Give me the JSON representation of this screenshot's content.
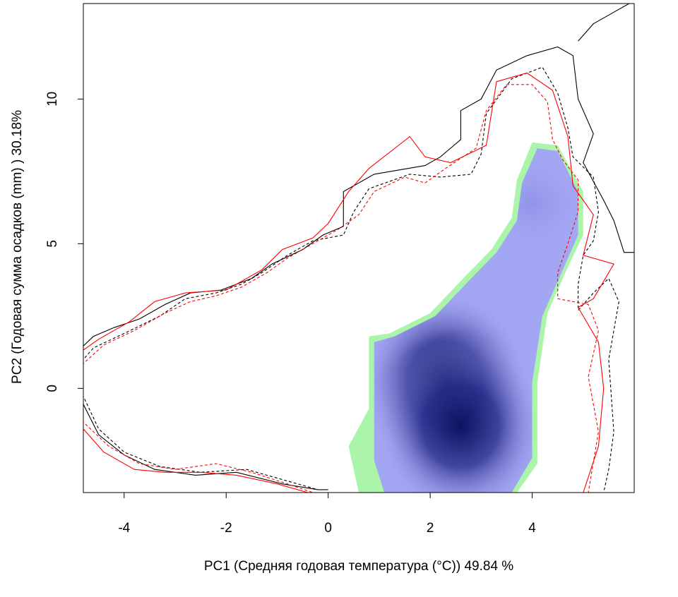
{
  "chart_data": {
    "type": "heatmap",
    "title": "",
    "xlabel": "PC1 (Средняя годовая температура (°C)) 49.84 %",
    "ylabel": "PC2 (Годовая сумма осадков  (mm) ) 30.18%",
    "xlim": [
      -4.8,
      6.0
    ],
    "ylim": [
      -3.6,
      13.3
    ],
    "x_ticks": [
      -4,
      -2,
      0,
      2,
      4
    ],
    "y_ticks": [
      0,
      5,
      10
    ],
    "x_tick_labels": [
      "-4",
      "-2",
      "0",
      "2",
      "4"
    ],
    "y_tick_labels": [
      "0",
      "5",
      "10"
    ],
    "grid": false,
    "legend": "none",
    "density_peaks": [
      {
        "x": 2.3,
        "y": 0.2,
        "level": 1.0
      },
      {
        "x": 2.6,
        "y": -1.3,
        "level": 0.85
      },
      {
        "x": 4.0,
        "y": 6.4,
        "level": 0.3
      }
    ],
    "regions": [
      {
        "name": "green-occupied",
        "points": [
          [
            0.8,
            1.8
          ],
          [
            1.2,
            1.9
          ],
          [
            2.0,
            2.6
          ],
          [
            2.7,
            3.9
          ],
          [
            3.2,
            4.8
          ],
          [
            3.6,
            5.9
          ],
          [
            3.7,
            7.2
          ],
          [
            4.0,
            8.5
          ],
          [
            4.5,
            8.4
          ],
          [
            5.0,
            6.8
          ],
          [
            5.0,
            5.3
          ],
          [
            4.7,
            4.2
          ],
          [
            4.3,
            2.6
          ],
          [
            4.1,
            0.2
          ],
          [
            4.1,
            -2.6
          ],
          [
            3.7,
            -3.6
          ],
          [
            0.6,
            -3.6
          ],
          [
            0.4,
            -2.0
          ],
          [
            0.8,
            -0.7
          ],
          [
            0.8,
            1.8
          ]
        ]
      },
      {
        "name": "blue-density",
        "points": [
          [
            0.9,
            1.6
          ],
          [
            1.3,
            1.8
          ],
          [
            2.1,
            2.5
          ],
          [
            2.8,
            3.8
          ],
          [
            3.3,
            4.7
          ],
          [
            3.7,
            5.8
          ],
          [
            3.8,
            7.1
          ],
          [
            4.1,
            8.3
          ],
          [
            4.5,
            8.2
          ],
          [
            4.9,
            6.8
          ],
          [
            4.9,
            5.3
          ],
          [
            4.6,
            4.1
          ],
          [
            4.2,
            2.5
          ],
          [
            4.0,
            0.2
          ],
          [
            4.0,
            -2.4
          ],
          [
            3.6,
            -3.6
          ],
          [
            1.1,
            -3.6
          ],
          [
            0.9,
            -2.5
          ],
          [
            0.9,
            1.6
          ]
        ]
      }
    ],
    "series": [
      {
        "color": "#000000",
        "dash": "solid",
        "points": [
          [
            -4.9,
            1.3
          ],
          [
            -4.6,
            1.8
          ],
          [
            -4.2,
            2.1
          ],
          [
            -3.7,
            2.4
          ],
          [
            -3.2,
            2.9
          ],
          [
            -2.7,
            3.3
          ],
          [
            -2.1,
            3.4
          ],
          [
            -1.5,
            3.8
          ],
          [
            -1.1,
            4.3
          ],
          [
            -0.5,
            4.8
          ],
          [
            -0.1,
            5.3
          ],
          [
            0.3,
            5.6
          ],
          [
            0.3,
            6.8
          ],
          [
            0.9,
            7.4
          ],
          [
            1.9,
            7.7
          ],
          [
            2.2,
            8.0
          ],
          [
            2.6,
            8.6
          ],
          [
            2.6,
            9.6
          ],
          [
            3.0,
            10.0
          ],
          [
            3.3,
            11.0
          ],
          [
            3.9,
            11.5
          ],
          [
            4.5,
            11.8
          ],
          [
            4.8,
            11.5
          ],
          [
            4.9,
            10.0
          ],
          [
            5.2,
            8.8
          ],
          [
            5.0,
            7.8
          ],
          [
            5.4,
            6.5
          ],
          [
            5.6,
            5.8
          ],
          [
            5.8,
            4.7
          ],
          [
            6.0,
            4.7
          ]
        ]
      },
      {
        "color": "#000000",
        "dash": "dashed",
        "points": [
          [
            -4.9,
            0.8
          ],
          [
            -4.6,
            1.4
          ],
          [
            -4.0,
            1.9
          ],
          [
            -3.3,
            2.5
          ],
          [
            -2.8,
            3.1
          ],
          [
            -2.2,
            3.3
          ],
          [
            -1.7,
            3.6
          ],
          [
            -1.3,
            4.0
          ],
          [
            -0.8,
            4.6
          ],
          [
            -0.3,
            5.1
          ],
          [
            0.3,
            5.3
          ],
          [
            0.5,
            6.1
          ],
          [
            0.8,
            6.9
          ],
          [
            1.6,
            7.4
          ],
          [
            2.2,
            7.3
          ],
          [
            2.8,
            7.4
          ],
          [
            3.0,
            8.1
          ],
          [
            3.1,
            9.5
          ],
          [
            3.6,
            10.7
          ],
          [
            4.2,
            11.1
          ],
          [
            4.5,
            10.2
          ],
          [
            4.7,
            9.0
          ],
          [
            4.8,
            8.0
          ],
          [
            5.2,
            7.3
          ],
          [
            5.3,
            6.1
          ],
          [
            5.2,
            5.1
          ],
          [
            5.0,
            4.6
          ],
          [
            4.9,
            3.6
          ],
          [
            4.9,
            2.7
          ],
          [
            5.2,
            3.3
          ],
          [
            5.5,
            3.8
          ],
          [
            5.7,
            3.0
          ],
          [
            5.5,
            1.0
          ],
          [
            5.6,
            -1.5
          ],
          [
            5.5,
            -2.8
          ],
          [
            5.4,
            -3.6
          ]
        ]
      },
      {
        "color": "#ff0000",
        "dash": "solid",
        "points": [
          [
            -4.9,
            1.2
          ],
          [
            -4.5,
            1.7
          ],
          [
            -3.9,
            2.3
          ],
          [
            -3.4,
            3.0
          ],
          [
            -2.8,
            3.3
          ],
          [
            -2.0,
            3.4
          ],
          [
            -1.3,
            4.1
          ],
          [
            -0.9,
            4.8
          ],
          [
            -0.3,
            5.2
          ],
          [
            0.0,
            5.7
          ],
          [
            0.4,
            6.8
          ],
          [
            0.8,
            7.6
          ],
          [
            1.6,
            8.7
          ],
          [
            1.9,
            8.0
          ],
          [
            2.4,
            7.8
          ],
          [
            3.1,
            8.4
          ],
          [
            3.3,
            10.6
          ],
          [
            3.9,
            10.9
          ],
          [
            4.4,
            10.3
          ],
          [
            4.7,
            8.7
          ],
          [
            4.8,
            7.0
          ],
          [
            5.2,
            6.0
          ],
          [
            5.0,
            4.6
          ],
          [
            5.6,
            4.3
          ],
          [
            5.2,
            3.1
          ],
          [
            4.9,
            2.8
          ],
          [
            5.3,
            1.6
          ],
          [
            5.4,
            0.0
          ],
          [
            5.3,
            -2.0
          ],
          [
            5.0,
            -3.6
          ]
        ]
      },
      {
        "color": "#ff0000",
        "dash": "dashed",
        "points": [
          [
            -4.9,
            0.7
          ],
          [
            -4.4,
            1.5
          ],
          [
            -3.8,
            2.0
          ],
          [
            -3.2,
            2.6
          ],
          [
            -2.7,
            3.0
          ],
          [
            -2.2,
            3.2
          ],
          [
            -1.7,
            3.5
          ],
          [
            -1.2,
            4.0
          ],
          [
            -0.8,
            4.5
          ],
          [
            -0.3,
            5.0
          ],
          [
            0.2,
            5.5
          ],
          [
            0.6,
            6.0
          ],
          [
            0.9,
            6.8
          ],
          [
            1.5,
            7.3
          ],
          [
            1.9,
            7.1
          ],
          [
            2.3,
            7.6
          ],
          [
            2.9,
            8.3
          ],
          [
            3.1,
            9.6
          ],
          [
            3.5,
            10.5
          ],
          [
            4.0,
            10.5
          ],
          [
            4.3,
            9.9
          ],
          [
            4.4,
            8.6
          ],
          [
            4.6,
            7.9
          ],
          [
            4.9,
            7.2
          ],
          [
            4.9,
            6.1
          ],
          [
            4.7,
            5.0
          ],
          [
            4.5,
            4.0
          ],
          [
            4.5,
            3.1
          ],
          [
            5.1,
            2.9
          ],
          [
            5.3,
            2.0
          ],
          [
            5.1,
            0.4
          ],
          [
            5.3,
            -1.5
          ],
          [
            5.1,
            -3.6
          ]
        ]
      },
      {
        "color": "#000000",
        "dash": "solid",
        "points": [
          [
            4.9,
            12.0
          ],
          [
            5.2,
            12.6
          ],
          [
            5.6,
            13.0
          ],
          [
            5.9,
            13.3
          ]
        ]
      },
      {
        "color": "#000000",
        "dash": "solid",
        "points": [
          [
            -4.9,
            -0.2
          ],
          [
            -4.5,
            -1.6
          ],
          [
            -4.0,
            -2.3
          ],
          [
            -3.4,
            -2.8
          ],
          [
            -2.6,
            -3.0
          ],
          [
            -1.8,
            -2.9
          ],
          [
            -0.9,
            -3.3
          ],
          [
            -0.2,
            -3.5
          ],
          [
            0.0,
            -3.5
          ]
        ]
      },
      {
        "color": "#000000",
        "dash": "dashed",
        "points": [
          [
            -4.9,
            0.1
          ],
          [
            -4.5,
            -1.4
          ],
          [
            -4.0,
            -2.2
          ],
          [
            -3.3,
            -2.7
          ],
          [
            -2.5,
            -2.9
          ],
          [
            -1.6,
            -2.8
          ],
          [
            -0.8,
            -3.2
          ],
          [
            -0.2,
            -3.5
          ]
        ]
      },
      {
        "color": "#ff0000",
        "dash": "solid",
        "points": [
          [
            -4.9,
            -1.2
          ],
          [
            -4.4,
            -2.2
          ],
          [
            -3.8,
            -2.8
          ],
          [
            -3.2,
            -2.9
          ],
          [
            -2.5,
            -2.9
          ],
          [
            -1.8,
            -3.0
          ],
          [
            -1.0,
            -3.3
          ],
          [
            -0.4,
            -3.6
          ]
        ]
      },
      {
        "color": "#ff0000",
        "dash": "dashed",
        "points": [
          [
            -4.9,
            -1.0
          ],
          [
            -4.3,
            -2.0
          ],
          [
            -3.7,
            -2.6
          ],
          [
            -3.0,
            -2.8
          ],
          [
            -2.2,
            -2.6
          ],
          [
            -1.5,
            -2.9
          ],
          [
            -0.8,
            -3.3
          ],
          [
            -0.3,
            -3.6
          ]
        ]
      }
    ]
  }
}
